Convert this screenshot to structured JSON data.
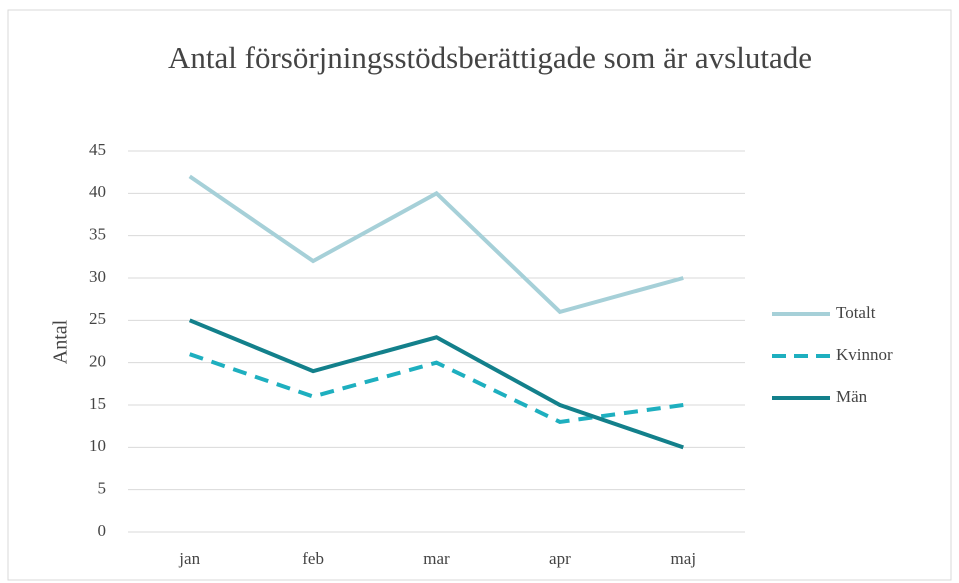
{
  "chart_data": {
    "type": "line",
    "title": "Antal försörjningsstödsberättigade som är avslutade",
    "y_label": "Antal",
    "categories": [
      "jan",
      "feb",
      "mar",
      "apr",
      "maj"
    ],
    "series": [
      {
        "name": "Totalt",
        "color": "#a6d0d8",
        "dash": "solid",
        "values": [
          42,
          32,
          40,
          26,
          30
        ]
      },
      {
        "name": "Kvinnor",
        "color": "#1eafbf",
        "dash": "dashed",
        "values": [
          21,
          16,
          20,
          13,
          15
        ]
      },
      {
        "name": "Män",
        "color": "#13808b",
        "dash": "solid",
        "values": [
          25,
          19,
          23,
          15,
          10
        ]
      }
    ],
    "ylim": [
      0,
      45
    ],
    "yticks": [
      0,
      5,
      10,
      15,
      20,
      25,
      30,
      35,
      40,
      45
    ],
    "grid": true,
    "legend": "right"
  }
}
